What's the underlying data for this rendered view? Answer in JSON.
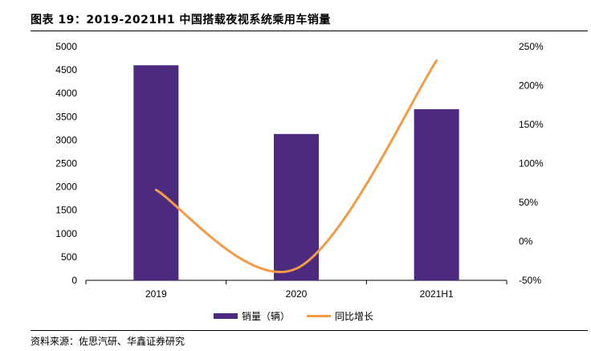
{
  "title": "图表 19：2019-2021H1 中国搭载夜视系统乘用车销量",
  "source": "资料来源：佐思汽研、华鑫证券研究",
  "colors": {
    "bar": "#4b2a7f",
    "line": "#f59a46"
  },
  "chart_data": {
    "type": "bar+line",
    "categories": [
      "2019",
      "2020",
      "2021H1"
    ],
    "series": [
      {
        "name": "销量（辆）",
        "type": "bar",
        "axis": "left",
        "values": [
          4600,
          3130,
          3660
        ]
      },
      {
        "name": "同比增长",
        "type": "line",
        "axis": "right",
        "values": [
          66,
          -35,
          232
        ]
      }
    ],
    "left_axis": {
      "min": 0,
      "max": 5000,
      "step": 500,
      "ticks": [
        "0",
        "500",
        "1000",
        "1500",
        "2000",
        "2500",
        "3000",
        "3500",
        "4000",
        "4500",
        "5000"
      ]
    },
    "right_axis": {
      "min": -50,
      "max": 250,
      "step": 50,
      "ticks": [
        "-50%",
        "0%",
        "50%",
        "100%",
        "150%",
        "200%",
        "250%"
      ]
    },
    "legend": [
      "销量（辆）",
      "同比增长"
    ],
    "legend_position": "bottom"
  }
}
